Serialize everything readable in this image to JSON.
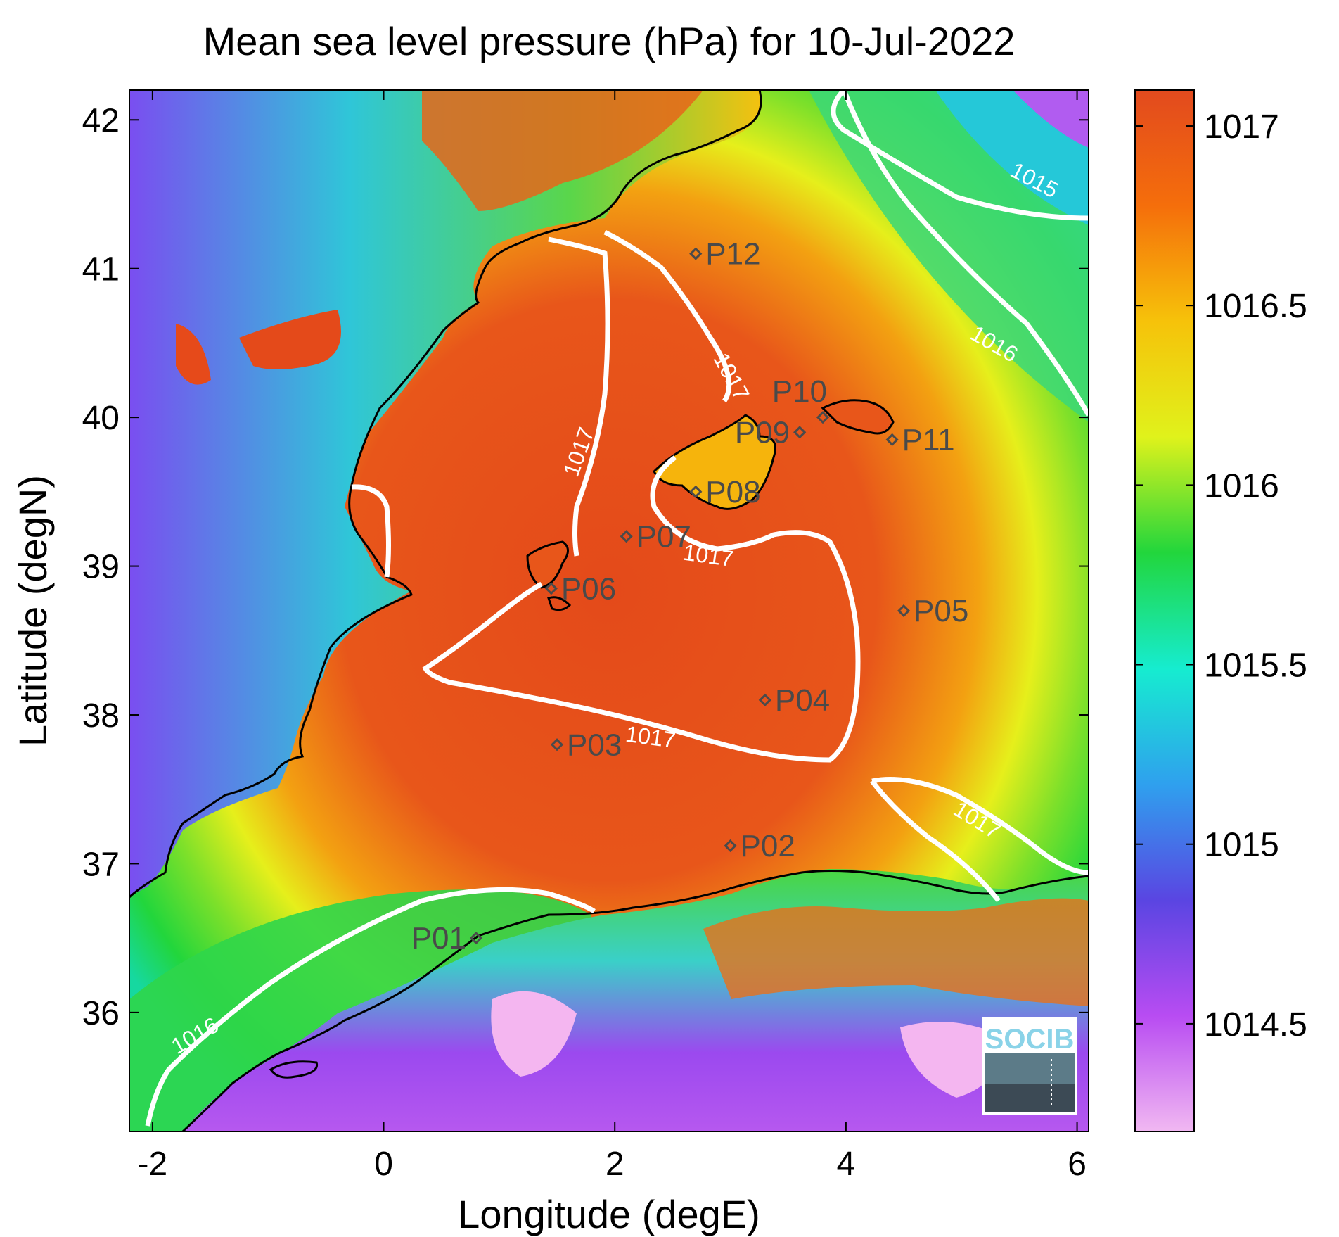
{
  "map": {
    "title": "Mean sea level pressure (hPa) for 10-Jul-2022",
    "xlabel": "Longitude (degE)",
    "ylabel": "Latitude (degN)",
    "lon_range": [
      -2.2,
      6.1
    ],
    "lat_range": [
      35.2,
      42.2
    ],
    "x_ticks": [
      {
        "value": -2,
        "label": "-2"
      },
      {
        "value": 0,
        "label": "0"
      },
      {
        "value": 2,
        "label": "2"
      },
      {
        "value": 4,
        "label": "4"
      },
      {
        "value": 6,
        "label": "6"
      }
    ],
    "y_ticks": [
      {
        "value": 36,
        "label": "36"
      },
      {
        "value": 37,
        "label": "37"
      },
      {
        "value": 38,
        "label": "38"
      },
      {
        "value": 39,
        "label": "39"
      },
      {
        "value": 40,
        "label": "40"
      },
      {
        "value": 41,
        "label": "41"
      },
      {
        "value": 42,
        "label": "42"
      }
    ]
  },
  "colorbar": {
    "range": [
      1014.2,
      1017.1
    ],
    "ticks": [
      {
        "value": 1014.5,
        "label": "1014.5"
      },
      {
        "value": 1015,
        "label": "1015"
      },
      {
        "value": 1015.5,
        "label": "1015.5"
      },
      {
        "value": 1016,
        "label": "1016"
      },
      {
        "value": 1016.5,
        "label": "1016.5"
      },
      {
        "value": 1017,
        "label": "1017"
      }
    ],
    "colors": [
      "#f1b8f2",
      "#b84cf2",
      "#5a45e2",
      "#2fa0ee",
      "#16ecd0",
      "#22d63c",
      "#e0f21b",
      "#f6c20a",
      "#f56e0b",
      "#e24a1e"
    ]
  },
  "stations": [
    {
      "id": "P01",
      "label": "P01",
      "lon": 0.8,
      "lat": 36.5,
      "anchor": "end"
    },
    {
      "id": "P02",
      "label": "P02",
      "lon": 3.0,
      "lat": 37.12,
      "anchor": "start"
    },
    {
      "id": "P03",
      "label": "P03",
      "lon": 1.5,
      "lat": 37.8,
      "anchor": "start"
    },
    {
      "id": "P04",
      "label": "P04",
      "lon": 3.3,
      "lat": 38.1,
      "anchor": "start"
    },
    {
      "id": "P05",
      "label": "P05",
      "lon": 4.5,
      "lat": 38.7,
      "anchor": "start"
    },
    {
      "id": "P06",
      "label": "P06",
      "lon": 1.45,
      "lat": 38.85,
      "anchor": "start"
    },
    {
      "id": "P07",
      "label": "P07",
      "lon": 2.1,
      "lat": 39.2,
      "anchor": "start"
    },
    {
      "id": "P08",
      "label": "P08",
      "lon": 2.7,
      "lat": 39.5,
      "anchor": "start"
    },
    {
      "id": "P09",
      "label": "P09",
      "lon": 3.6,
      "lat": 39.9,
      "anchor": "end"
    },
    {
      "id": "P10",
      "label": "P10",
      "lon": 3.8,
      "lat": 40.0,
      "anchor": "end-above"
    },
    {
      "id": "P11",
      "label": "P11",
      "lon": 4.4,
      "lat": 39.85,
      "anchor": "start"
    },
    {
      "id": "P12",
      "label": "P12",
      "lon": 2.7,
      "lat": 41.1,
      "anchor": "start"
    }
  ],
  "contour_labels": [
    {
      "text": "1015",
      "lon": 5.6,
      "lat": 41.55,
      "rotate": 28
    },
    {
      "text": "1016",
      "lon": 5.25,
      "lat": 40.45,
      "rotate": 30
    },
    {
      "text": "1017",
      "lon": 2.95,
      "lat": 40.25,
      "rotate": 62
    },
    {
      "text": "1017",
      "lon": 1.75,
      "lat": 39.75,
      "rotate": -70
    },
    {
      "text": "1017",
      "lon": 2.8,
      "lat": 39.02,
      "rotate": 8
    },
    {
      "text": "1017",
      "lon": 2.3,
      "lat": 37.8,
      "rotate": 8
    },
    {
      "text": "1017",
      "lon": 5.1,
      "lat": 37.25,
      "rotate": 32
    },
    {
      "text": "1016",
      "lon": -1.6,
      "lat": 35.8,
      "rotate": -30
    }
  ],
  "logo": {
    "text": "SOCIB"
  }
}
